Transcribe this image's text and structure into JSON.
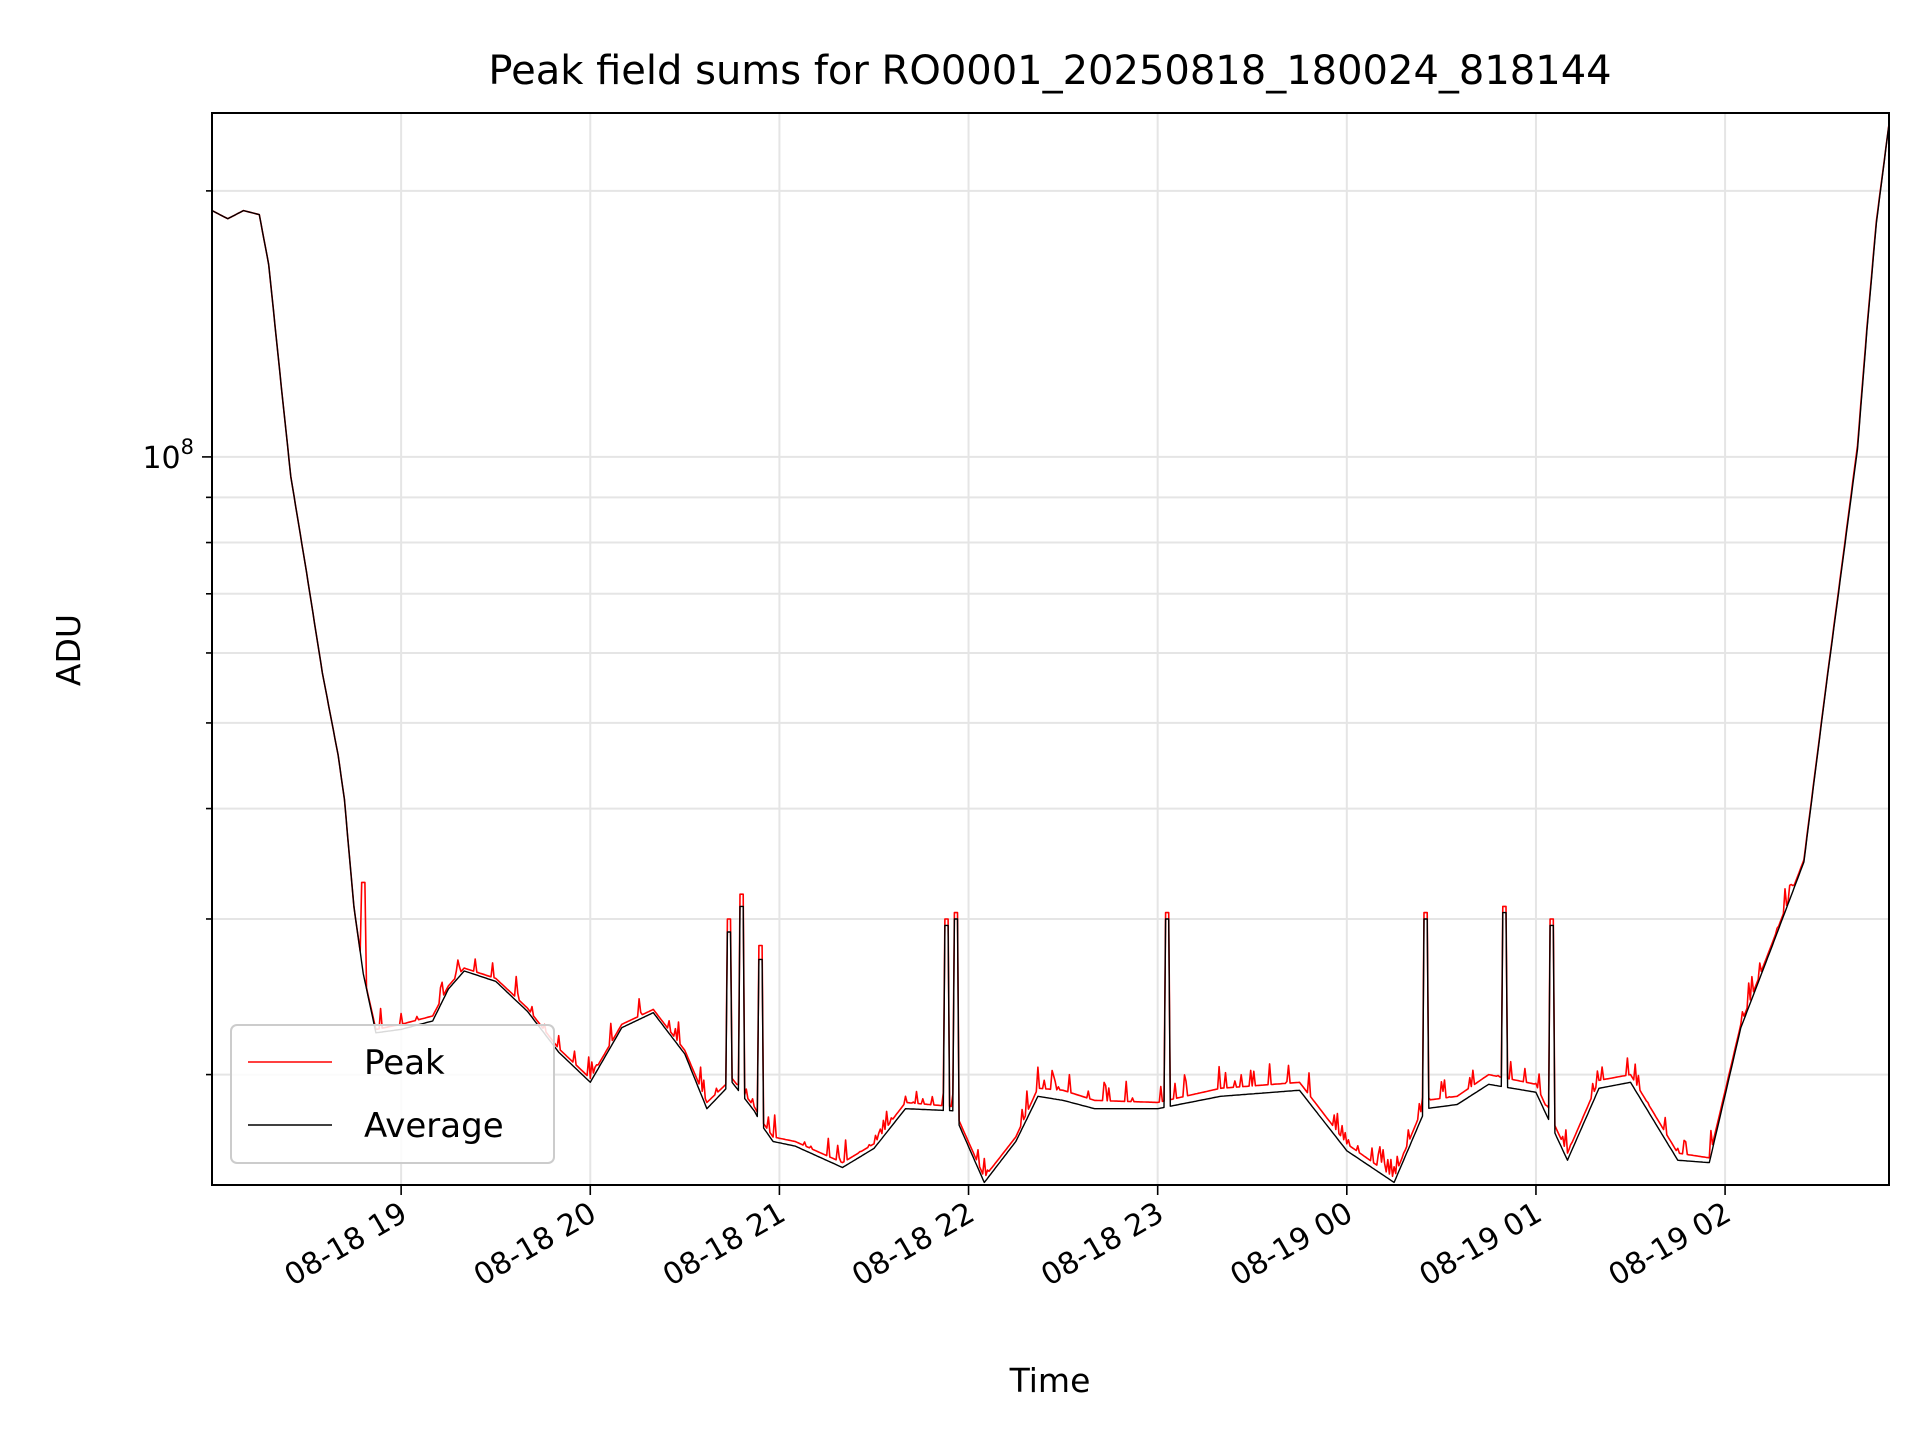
{
  "chart_data": {
    "type": "line",
    "title": "Peak field sums for RO0001_20250818_180024_818144",
    "xlabel": "Time",
    "ylabel": "ADU",
    "yscale": "log",
    "ylim": [
      15000000,
      245000000
    ],
    "xlim": [
      "2025-08-18 18:00",
      "2025-08-19 02:52"
    ],
    "x_ticks": [
      "08-18 19",
      "08-18 20",
      "08-18 21",
      "08-18 22",
      "08-18 23",
      "08-19 00",
      "08-19 01",
      "08-19 02"
    ],
    "y_ticks": [
      "10^8"
    ],
    "y_major_tick_value": 100000000,
    "grid": true,
    "legend_position": "lower-left",
    "series": [
      {
        "name": "Peak",
        "color": "#ff0000",
        "x": [
          "2025-08-18 18:00",
          "2025-08-18 18:05",
          "2025-08-18 18:10",
          "2025-08-18 18:15",
          "2025-08-18 18:18",
          "2025-08-18 18:22",
          "2025-08-18 18:25",
          "2025-08-18 18:30",
          "2025-08-18 18:35",
          "2025-08-18 18:40",
          "2025-08-18 18:42",
          "2025-08-18 18:45",
          "2025-08-18 18:48",
          "2025-08-18 18:52",
          "2025-08-18 19:00",
          "2025-08-18 19:10",
          "2025-08-18 19:15",
          "2025-08-18 19:20",
          "2025-08-18 19:30",
          "2025-08-18 19:40",
          "2025-08-18 19:50",
          "2025-08-18 20:00",
          "2025-08-18 20:10",
          "2025-08-18 20:20",
          "2025-08-18 20:30",
          "2025-08-18 20:37",
          "2025-08-18 20:45",
          "2025-08-18 20:52",
          "2025-08-18 20:55",
          "2025-08-18 20:58",
          "2025-08-18 21:05",
          "2025-08-18 21:20",
          "2025-08-18 21:30",
          "2025-08-18 21:40",
          "2025-08-18 21:55",
          "2025-08-18 22:05",
          "2025-08-18 22:15",
          "2025-08-18 22:22",
          "2025-08-18 22:30",
          "2025-08-18 22:40",
          "2025-08-18 23:00",
          "2025-08-18 23:20",
          "2025-08-18 23:45",
          "2025-08-19 00:00",
          "2025-08-19 00:15",
          "2025-08-19 00:25",
          "2025-08-19 00:35",
          "2025-08-19 00:45",
          "2025-08-19 01:00",
          "2025-08-19 01:10",
          "2025-08-19 01:20",
          "2025-08-19 01:30",
          "2025-08-19 01:45",
          "2025-08-19 01:55",
          "2025-08-19 02:05",
          "2025-08-19 02:15",
          "2025-08-19 02:25",
          "2025-08-19 02:32",
          "2025-08-19 02:38",
          "2025-08-19 02:42",
          "2025-08-19 02:45",
          "2025-08-19 02:48",
          "2025-08-19 02:52"
        ],
        "y": [
          190000000,
          186000000,
          190000000,
          188000000,
          165000000,
          120000000,
          95000000,
          74000000,
          57000000,
          46000000,
          41000000,
          31000000,
          26000000,
          22500000,
          22800000,
          23300000,
          25200000,
          26400000,
          25700000,
          23800000,
          21400000,
          19800000,
          22800000,
          23700000,
          21300000,
          18600000,
          19800000,
          18400000,
          17600000,
          17000000,
          16800000,
          15900000,
          16700000,
          18600000,
          18400000,
          15300000,
          17000000,
          19300000,
          19200000,
          18700000,
          18600000,
          19300000,
          19600000,
          16700000,
          15300000,
          18700000,
          18900000,
          20000000,
          19500000,
          16300000,
          19700000,
          20000000,
          16300000,
          16100000,
          22800000,
          28200000,
          35000000,
          55000000,
          80000000,
          103000000,
          140000000,
          185000000,
          238000000
        ]
      },
      {
        "name": "Average",
        "color": "#000000",
        "x": [
          "2025-08-18 18:00",
          "2025-08-18 18:05",
          "2025-08-18 18:10",
          "2025-08-18 18:15",
          "2025-08-18 18:18",
          "2025-08-18 18:22",
          "2025-08-18 18:25",
          "2025-08-18 18:30",
          "2025-08-18 18:35",
          "2025-08-18 18:40",
          "2025-08-18 18:42",
          "2025-08-18 18:45",
          "2025-08-18 18:48",
          "2025-08-18 18:52",
          "2025-08-18 19:00",
          "2025-08-18 19:10",
          "2025-08-18 19:15",
          "2025-08-18 19:20",
          "2025-08-18 19:30",
          "2025-08-18 19:40",
          "2025-08-18 19:50",
          "2025-08-18 20:00",
          "2025-08-18 20:10",
          "2025-08-18 20:20",
          "2025-08-18 20:30",
          "2025-08-18 20:37",
          "2025-08-18 20:45",
          "2025-08-18 20:52",
          "2025-08-18 20:55",
          "2025-08-18 20:58",
          "2025-08-18 21:05",
          "2025-08-18 21:20",
          "2025-08-18 21:30",
          "2025-08-18 21:40",
          "2025-08-18 21:55",
          "2025-08-18 22:05",
          "2025-08-18 22:15",
          "2025-08-18 22:22",
          "2025-08-18 22:30",
          "2025-08-18 22:40",
          "2025-08-18 23:00",
          "2025-08-18 23:20",
          "2025-08-18 23:45",
          "2025-08-19 00:00",
          "2025-08-19 00:15",
          "2025-08-19 00:25",
          "2025-08-19 00:35",
          "2025-08-19 00:45",
          "2025-08-19 01:00",
          "2025-08-19 01:10",
          "2025-08-19 01:20",
          "2025-08-19 01:30",
          "2025-08-19 01:45",
          "2025-08-19 01:55",
          "2025-08-19 02:05",
          "2025-08-19 02:15",
          "2025-08-19 02:25",
          "2025-08-19 02:32",
          "2025-08-19 02:38",
          "2025-08-19 02:42",
          "2025-08-19 02:45",
          "2025-08-19 02:48",
          "2025-08-19 02:52"
        ],
        "y": [
          190000000,
          186000000,
          190000000,
          188000000,
          165000000,
          120000000,
          95000000,
          74000000,
          57000000,
          46000000,
          41000000,
          31000000,
          26000000,
          22300000,
          22500000,
          23000000,
          25000000,
          26200000,
          25500000,
          23600000,
          21200000,
          19600000,
          22600000,
          23500000,
          21100000,
          18300000,
          19600000,
          18200000,
          17400000,
          16800000,
          16600000,
          15700000,
          16500000,
          18300000,
          18200000,
          15100000,
          16800000,
          18900000,
          18700000,
          18300000,
          18300000,
          18900000,
          19200000,
          16400000,
          15100000,
          18300000,
          18500000,
          19500000,
          19100000,
          16000000,
          19300000,
          19600000,
          16000000,
          15900000,
          22600000,
          28000000,
          34800000,
          54800000,
          79500000,
          102000000,
          139000000,
          184000000,
          238000000
        ]
      }
    ],
    "spikes": [
      {
        "x": "2025-08-18 18:40",
        "peak": 35000000,
        "average": 32000000
      },
      {
        "x": "2025-08-18 18:48",
        "peak": 33000000,
        "average": 22500000
      },
      {
        "x": "2025-08-18 20:44",
        "peak": 30000000,
        "average": 29000000
      },
      {
        "x": "2025-08-18 20:48",
        "peak": 32000000,
        "average": 31000000
      },
      {
        "x": "2025-08-18 20:54",
        "peak": 28000000,
        "average": 27000000
      },
      {
        "x": "2025-08-18 21:53",
        "peak": 30000000,
        "average": 29500000
      },
      {
        "x": "2025-08-18 21:56",
        "peak": 30500000,
        "average": 30000000
      },
      {
        "x": "2025-08-18 23:03",
        "peak": 30500000,
        "average": 30000000
      },
      {
        "x": "2025-08-19 00:25",
        "peak": 30500000,
        "average": 30000000
      },
      {
        "x": "2025-08-19 00:50",
        "peak": 31000000,
        "average": 30500000
      },
      {
        "x": "2025-08-19 01:05",
        "peak": 30000000,
        "average": 29500000
      }
    ]
  }
}
